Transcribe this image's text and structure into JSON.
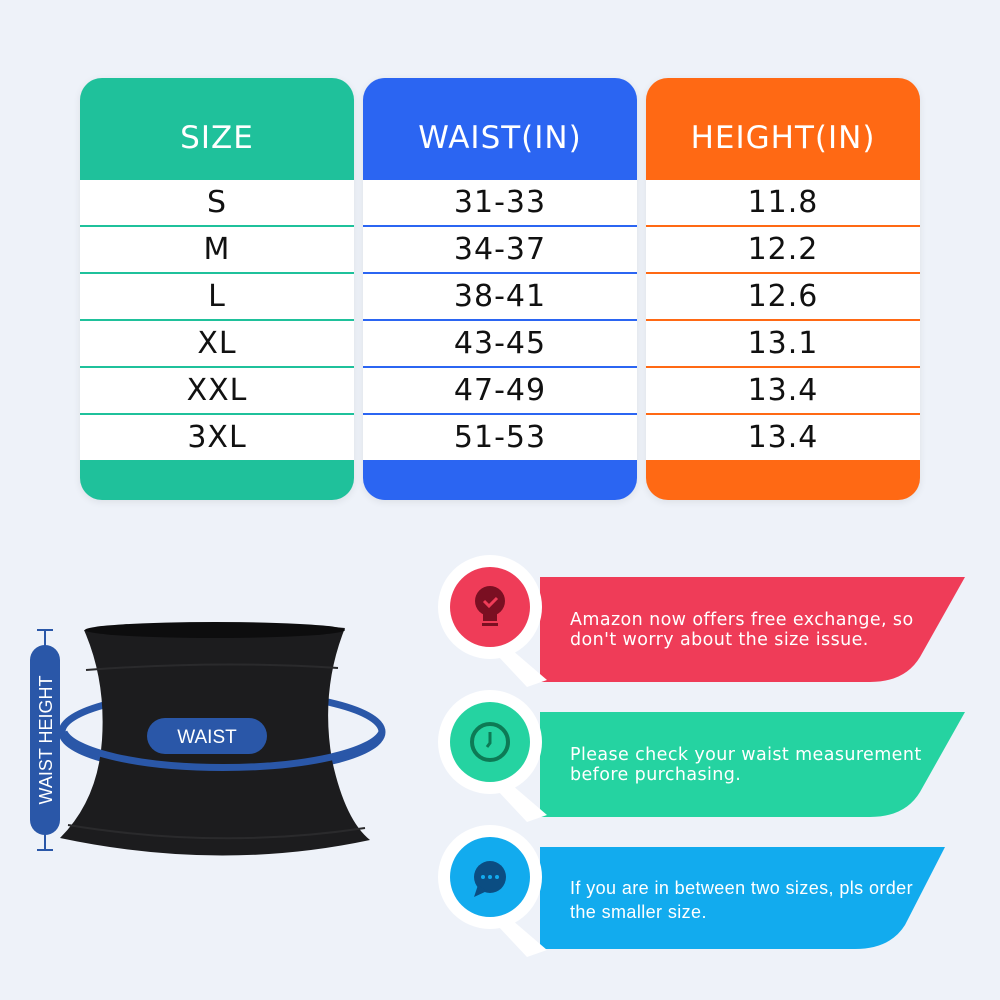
{
  "table": {
    "columns": [
      {
        "header": "SIZE",
        "color": "#1fc19b",
        "values": [
          "S",
          "M",
          "L",
          "XL",
          "XXL",
          "3XL"
        ]
      },
      {
        "header": "WAIST(IN)",
        "color": "#2b65f2",
        "values": [
          "31-33",
          "34-37",
          "38-41",
          "43-45",
          "47-49",
          "51-53"
        ]
      },
      {
        "header": "HEIGHT(IN)",
        "color": "#ff6914",
        "values": [
          "11.8",
          "12.2",
          "12.6",
          "13.1",
          "13.4",
          "13.4"
        ]
      }
    ]
  },
  "diagram": {
    "waist_label": "WAIST",
    "height_label": "WAIST HEIGHT",
    "accent": "#2a57a8"
  },
  "tips": [
    {
      "icon": "lightbulb-check-icon",
      "color": "#ef3c58",
      "text": "Amazon now offers free exchange, so don't worry about the size issue."
    },
    {
      "icon": "clock-icon",
      "color": "#25d3a1",
      "text": "Please check your waist measurement before purchasing."
    },
    {
      "icon": "chat-bubble-icon",
      "color": "#12abee",
      "text": "If you are in between two sizes, pls order the smaller size."
    }
  ]
}
